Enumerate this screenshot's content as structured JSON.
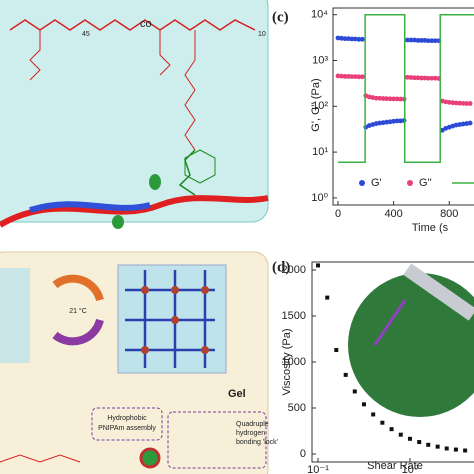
{
  "panels": {
    "a": {
      "subscript_n": "45",
      "co": "co",
      "subscript_m": "10"
    },
    "b": {
      "temperature": "21 °C",
      "gel": "Gel",
      "hydrophobic": [
        "Hydrophobic",
        "PNIPAm assembly"
      ],
      "hbond": [
        "Quadruple",
        "hydrogen",
        "bonding 'lock'"
      ]
    },
    "c": {
      "label": "(c)"
    },
    "d": {
      "label": "(d)"
    }
  },
  "chart_data": [
    {
      "type": "scatter",
      "ylabel": "G', G'' (Pa)",
      "xlabel": "Time (s",
      "yscale": "log",
      "xscale": "linear",
      "xlim": [
        -36,
        978
      ],
      "ylim": [
        0.7,
        14000
      ],
      "xticks": [
        0,
        400,
        800
      ],
      "yticks": [
        {
          "value": 1,
          "label": "10⁰"
        },
        {
          "value": 10,
          "label": "10¹"
        },
        {
          "value": 100,
          "label": "10²"
        },
        {
          "value": 1000,
          "label": "10³"
        },
        {
          "value": 10000,
          "label": "10⁴"
        }
      ],
      "x": [
        0,
        25,
        50,
        75,
        100,
        125,
        150,
        175,
        200,
        225,
        250,
        275,
        300,
        325,
        350,
        375,
        400,
        425,
        450,
        475,
        500,
        525,
        550,
        575,
        600,
        625,
        650,
        675,
        700,
        725,
        750,
        775,
        800,
        825,
        850,
        875,
        900,
        925,
        950
      ],
      "series": [
        {
          "name": "G'",
          "color": "#2d4ad6",
          "values": [
            3100,
            3050,
            3000,
            3000,
            2950,
            2950,
            2900,
            2900,
            35,
            38,
            40,
            42,
            43,
            44,
            45,
            46,
            47,
            48,
            48,
            49,
            2800,
            2800,
            2800,
            2750,
            2750,
            2750,
            2700,
            2700,
            2700,
            2700,
            30,
            33,
            35,
            37,
            39,
            40,
            41,
            42,
            43
          ]
        },
        {
          "name": "G''",
          "color": "#e8407a",
          "values": [
            460,
            455,
            450,
            450,
            445,
            445,
            440,
            440,
            170,
            160,
            155,
            150,
            150,
            148,
            147,
            146,
            145,
            145,
            144,
            143,
            430,
            425,
            420,
            420,
            415,
            415,
            410,
            410,
            410,
            405,
            130,
            125,
            122,
            120,
            118,
            117,
            116,
            115,
            115
          ]
        },
        {
          "color": "#3cb043",
          "x": [
            0,
            195,
            195,
            480,
            480,
            735,
            735,
            978
          ],
          "values": [
            6,
            6,
            10000,
            10000,
            6,
            6,
            10000,
            10000
          ]
        }
      ]
    },
    {
      "type": "scatter",
      "ylabel": "Viscosity (Pa)",
      "xlabel": "Shear Rate",
      "yscale": "linear",
      "xscale": "log",
      "xlim": [
        0.086,
        4.97
      ],
      "ylim": [
        -87,
        2087
      ],
      "yticks": [
        0,
        500,
        1000,
        1500,
        2000
      ],
      "xticks": [
        {
          "value": 0.1,
          "label": "10⁻¹"
        },
        {
          "value": 1,
          "label": "10⁰"
        }
      ],
      "x": [
        0.1,
        0.126,
        0.158,
        0.2,
        0.251,
        0.316,
        0.398,
        0.501,
        0.631,
        0.794,
        1.0,
        1.26,
        1.58,
        2.0,
        2.51,
        3.16,
        3.98
      ],
      "series": [
        {
          "color": "#111111",
          "values": [
            2050,
            1700,
            1130,
            860,
            680,
            540,
            430,
            340,
            270,
            210,
            165,
            130,
            100,
            80,
            60,
            48,
            38
          ]
        }
      ]
    }
  ]
}
